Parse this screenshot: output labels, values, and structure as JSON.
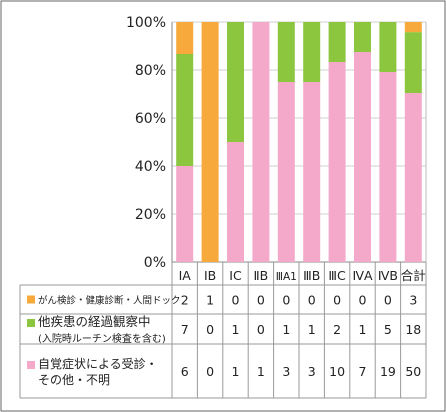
{
  "chart_data": {
    "type": "bar",
    "stacked": "percent",
    "categories": [
      "ⅠA",
      "ⅠB",
      "ⅠC",
      "ⅡB",
      "ⅢA1",
      "ⅢB",
      "ⅢC",
      "ⅣA",
      "ⅣB",
      "合計"
    ],
    "series": [
      {
        "name": "がん検診・健康診断・人間ドック",
        "color": "#F7A93B",
        "values": [
          2,
          1,
          0,
          0,
          0,
          0,
          0,
          0,
          0,
          3
        ]
      },
      {
        "name": "他疾患の経過観察中 (入院時ルーチン検査を含む)",
        "color": "#8CC63F",
        "values": [
          7,
          0,
          1,
          0,
          1,
          1,
          2,
          1,
          5,
          18
        ]
      },
      {
        "name": "自覚症状による受診・その他・不明",
        "color": "#F4A9CB",
        "values": [
          6,
          0,
          1,
          1,
          3,
          3,
          10,
          7,
          19,
          50
        ]
      }
    ],
    "y_tick_labels": [
      "0%",
      "20%",
      "40%",
      "60%",
      "80%",
      "100%"
    ],
    "ylim": [
      0,
      100
    ],
    "grid": true,
    "legend": "table-below"
  }
}
